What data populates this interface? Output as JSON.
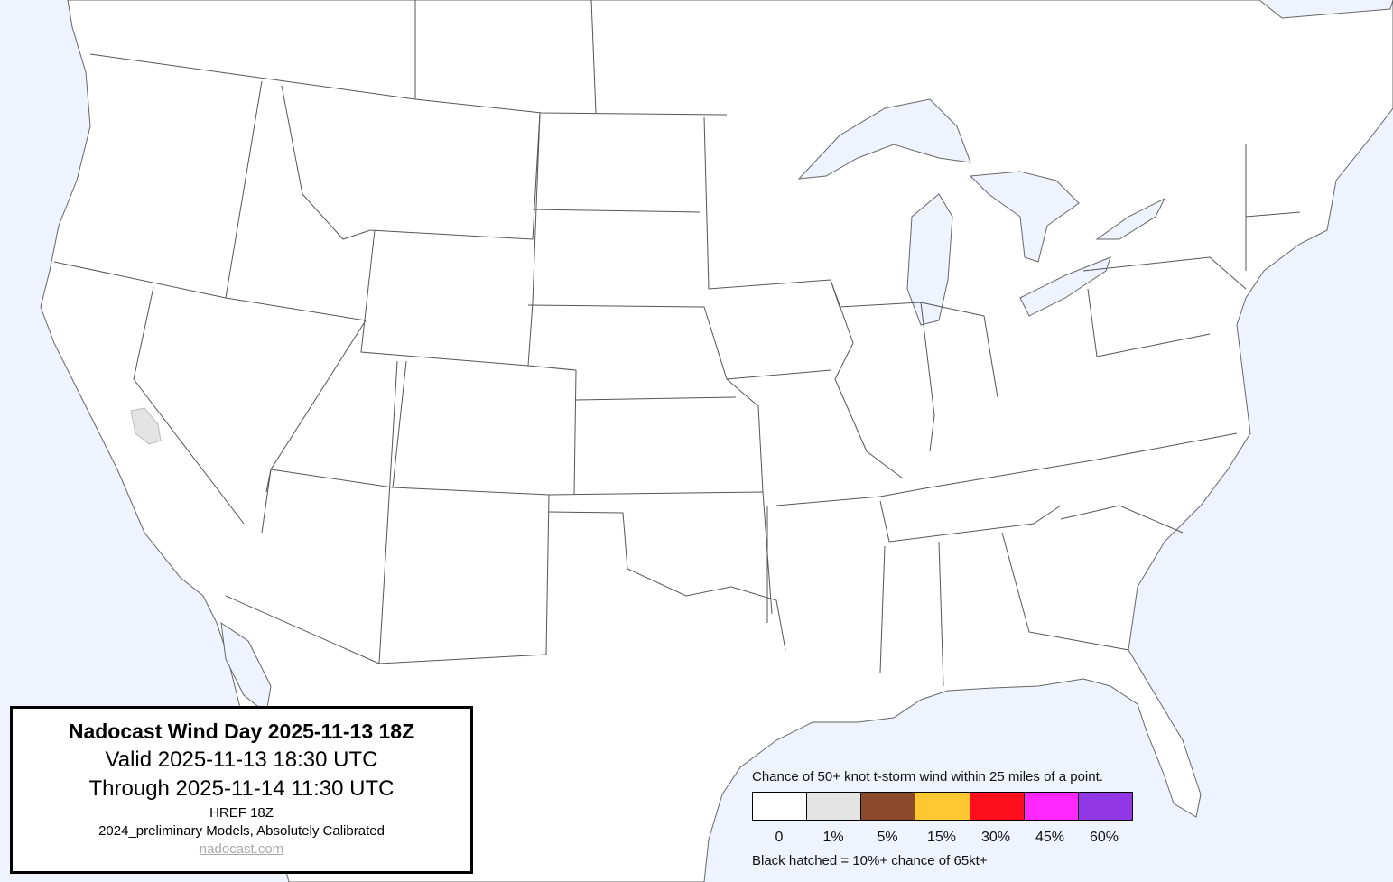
{
  "title_box": {
    "title": "Nadocast Wind Day 2025-11-13 18Z",
    "valid": "Valid 2025-11-13 18:30 UTC",
    "through": "Through 2025-11-14 11:30 UTC",
    "model": "HREF 18Z",
    "calibration": "2024_preliminary Models, Absolutely Calibrated",
    "link": "nadocast.com"
  },
  "legend": {
    "heading": "Chance of 50+ knot t-storm wind within 25 miles of a point.",
    "bins": [
      {
        "label": "0",
        "color": "#ffffff"
      },
      {
        "label": "1%",
        "color": "#e4e4e4"
      },
      {
        "label": "5%",
        "color": "#8b4a2b"
      },
      {
        "label": "15%",
        "color": "#ffc832"
      },
      {
        "label": "30%",
        "color": "#ff0f1e"
      },
      {
        "label": "45%",
        "color": "#ff28ff"
      },
      {
        "label": "60%",
        "color": "#9137e6"
      }
    ],
    "note": "Black hatched = 10%+ chance of 65kt+"
  },
  "map": {
    "water_color": "#eef3fe",
    "land_color": "#ffffff",
    "forecast_areas": [
      {
        "level": "1%",
        "region": "southern Nevada / eastern California"
      }
    ]
  }
}
